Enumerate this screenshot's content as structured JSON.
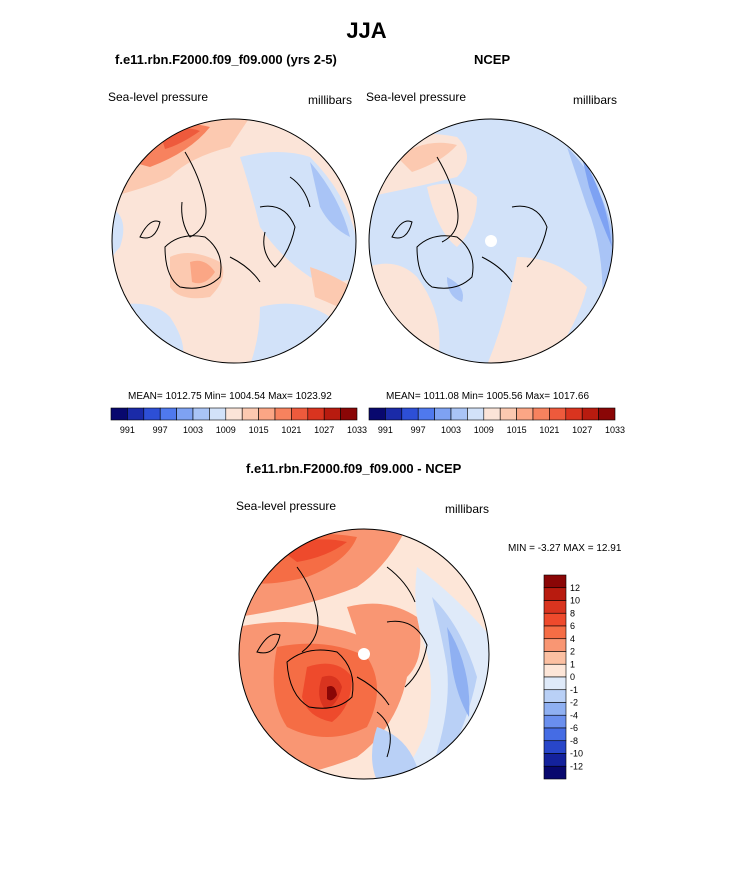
{
  "title": "JJA",
  "panels": [
    {
      "title": "f.e11.rbn.F2000.f09_f09.000 (yrs 2-5)",
      "left_label": "Sea-level pressure",
      "right_label": "millibars",
      "stats": "MEAN= 1012.75  Min= 1004.54  Max= 1023.92"
    },
    {
      "title": "NCEP",
      "left_label": "Sea-level pressure",
      "right_label": "millibars",
      "stats": "MEAN= 1011.08  Min= 1005.56  Max= 1017.66"
    },
    {
      "title": "f.e11.rbn.F2000.f09_f09.000 - NCEP",
      "left_label": "Sea-level pressure",
      "right_label": "millibars",
      "stats": "MIN =  -3.27 MAX =  12.91"
    }
  ],
  "colorbar_abs": {
    "labels": [
      "991",
      "997",
      "1003",
      "1009",
      "1015",
      "1021",
      "1027",
      "1033"
    ],
    "colors": [
      "#08086e",
      "#1a2aa8",
      "#2d4fd6",
      "#4f79ee",
      "#7ea2f3",
      "#a9c4f6",
      "#d2e2f9",
      "#fbe4d8",
      "#fcc9b0",
      "#fba685",
      "#f7825e",
      "#ee5a3c",
      "#d9341f",
      "#b81b0f",
      "#8a0606"
    ]
  },
  "colorbar_diff": {
    "labels": [
      "12",
      "10",
      "8",
      "6",
      "4",
      "2",
      "1",
      "0",
      "-1",
      "-2",
      "-4",
      "-6",
      "-8",
      "-10",
      "-12"
    ],
    "colors": [
      "#8a0606",
      "#b81b0f",
      "#d9341f",
      "#ee4a2c",
      "#f56d45",
      "#f99673",
      "#fcc0a2",
      "#fde6d8",
      "#dfeaf9",
      "#b9d0f6",
      "#8fb0f2",
      "#6a8fee",
      "#456ce4",
      "#2846c9",
      "#14229c",
      "#08086e"
    ]
  }
}
